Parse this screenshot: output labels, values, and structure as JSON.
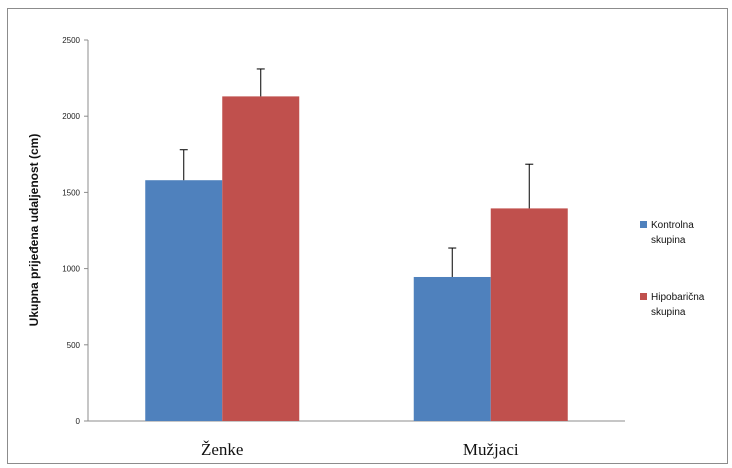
{
  "chart_data": {
    "type": "bar",
    "categories": [
      "Ženke",
      "Mužjaci"
    ],
    "series": [
      {
        "name": "Kontrolna skupina",
        "values": [
          1580,
          945
        ],
        "error": [
          200,
          190
        ],
        "color": "#4f81bd"
      },
      {
        "name": "Hipobarična skupina",
        "values": [
          2130,
          1395
        ],
        "error": [
          180,
          290
        ],
        "color": "#c0504d"
      }
    ],
    "ylabel": "Ukupna prijeđena udaljenost (cm)",
    "xlabel": "",
    "title": "",
    "ylim": [
      0,
      2500
    ],
    "yticks": [
      0,
      500,
      1000,
      1500,
      2000,
      2500
    ],
    "legend_position": "right",
    "grid": false
  }
}
